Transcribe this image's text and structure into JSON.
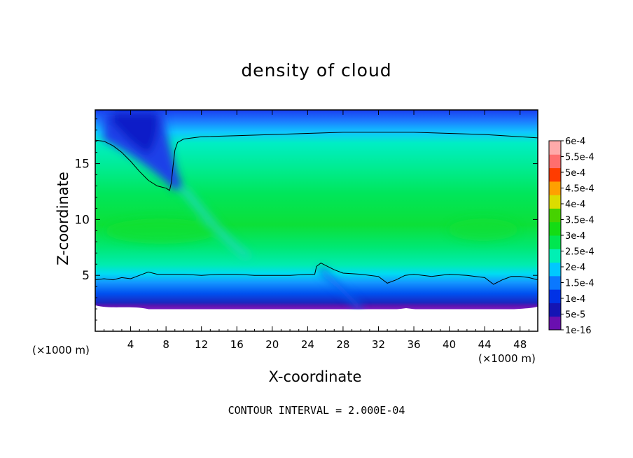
{
  "chart_data": {
    "type": "heatmap",
    "title": "density of cloud",
    "xlabel": "X-coordinate",
    "ylabel": "Z-coordinate",
    "x_unit": "(×1000 m)",
    "y_unit": "(×1000 m)",
    "xlim": [
      0,
      50
    ],
    "ylim": [
      0,
      19.8
    ],
    "x_ticks": [
      "4",
      "8",
      "12",
      "16",
      "20",
      "24",
      "28",
      "32",
      "36",
      "40",
      "44",
      "48"
    ],
    "y_ticks": [
      "5",
      "10",
      "15"
    ],
    "footer": "CONTOUR INTERVAL = 2.000E-04",
    "contour_interval": 0.0002,
    "colorbar": {
      "labels": [
        "1e-16",
        "5e-5",
        "1e-4",
        "1.5e-4",
        "2e-4",
        "2.5e-4",
        "3e-4",
        "3.5e-4",
        "4e-4",
        "4.5e-4",
        "5e-4",
        "5.5e-4",
        "6e-4"
      ],
      "colors": [
        "#6a0fb0",
        "#1414b4",
        "#0032e6",
        "#0a78ff",
        "#00c8ff",
        "#00f0b4",
        "#00e650",
        "#14dc14",
        "#46d200",
        "#dcdc00",
        "#ffa000",
        "#ff3c00",
        "#ff6e6e",
        "#ffaaaa"
      ]
    },
    "contour_lines": [
      {
        "level": 0.0002,
        "points": [
          [
            0,
            17.1
          ],
          [
            1,
            17
          ],
          [
            2,
            16.6
          ],
          [
            3,
            16
          ],
          [
            4,
            15.2
          ],
          [
            5,
            14.3
          ],
          [
            6,
            13.5
          ],
          [
            7,
            13
          ],
          [
            8,
            12.8
          ],
          [
            8.4,
            12.6
          ],
          [
            8.6,
            13.3
          ],
          [
            8.8,
            14.8
          ],
          [
            9,
            16.2
          ],
          [
            9.3,
            16.9
          ],
          [
            10,
            17.2
          ],
          [
            12,
            17.4
          ],
          [
            16,
            17.5
          ],
          [
            20,
            17.6
          ],
          [
            24,
            17.7
          ],
          [
            28,
            17.8
          ],
          [
            32,
            17.8
          ],
          [
            36,
            17.8
          ],
          [
            40,
            17.7
          ],
          [
            44,
            17.6
          ],
          [
            48,
            17.4
          ],
          [
            50,
            17.3
          ]
        ]
      },
      {
        "level": 0.0002,
        "points": [
          [
            0,
            4.6
          ],
          [
            1,
            4.7
          ],
          [
            2,
            4.6
          ],
          [
            3,
            4.8
          ],
          [
            4,
            4.7
          ],
          [
            5,
            5
          ],
          [
            6,
            5.3
          ],
          [
            7,
            5.1
          ],
          [
            8,
            5.1
          ],
          [
            10,
            5.1
          ],
          [
            12,
            5
          ],
          [
            14,
            5.1
          ],
          [
            16,
            5.1
          ],
          [
            18,
            5
          ],
          [
            20,
            5
          ],
          [
            22,
            5
          ],
          [
            24,
            5.1
          ],
          [
            24.8,
            5.1
          ],
          [
            25,
            5.8
          ],
          [
            25.5,
            6.1
          ],
          [
            26,
            5.9
          ],
          [
            27,
            5.5
          ],
          [
            28,
            5.2
          ],
          [
            30,
            5.1
          ],
          [
            32,
            4.9
          ],
          [
            33,
            4.3
          ],
          [
            34,
            4.6
          ],
          [
            35,
            5
          ],
          [
            36,
            5.1
          ],
          [
            38,
            4.9
          ],
          [
            40,
            5.1
          ],
          [
            42,
            5
          ],
          [
            44,
            4.8
          ],
          [
            45,
            4.2
          ],
          [
            46,
            4.6
          ],
          [
            47,
            4.9
          ],
          [
            48,
            4.9
          ],
          [
            49,
            4.8
          ],
          [
            50,
            4.6
          ]
        ]
      }
    ]
  }
}
